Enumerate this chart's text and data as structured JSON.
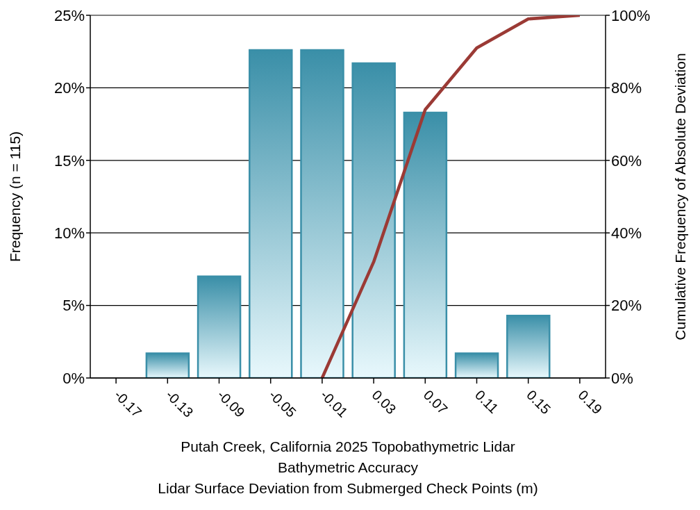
{
  "chart_data": {
    "type": "bar",
    "categories": [
      "-0.17",
      "-0.13",
      "-0.09",
      "-0.05",
      "-0.01",
      "0.03",
      "0.07",
      "0.11",
      "0.15",
      "0.19"
    ],
    "series": [
      {
        "color": "#3a8fa8",
        "values": [
          0,
          1.7,
          7.0,
          22.6,
          22.6,
          21.7,
          18.3,
          1.7,
          4.3,
          0
        ]
      },
      {
        "type": "line",
        "axis": "y2",
        "color": "#9b3a35",
        "values": [
          null,
          null,
          null,
          null,
          0,
          32,
          74,
          91,
          99,
          100
        ]
      }
    ],
    "ylabel": "Frequency (n = 115)",
    "y2label": "Cumulative Frequency of Absolute Deviation",
    "xlabel": "Putah Creek, California 2025 Topobathymetric Lidar\nBathymetric Accuracy\nLidar Surface Deviation from Submerged Check Points (m)",
    "ylim": [
      0,
      25
    ],
    "yticks": [
      {
        "value": 0,
        "label": "0%"
      },
      {
        "value": 5,
        "label": "5%"
      },
      {
        "value": 10,
        "label": "10%"
      },
      {
        "value": 15,
        "label": "15%"
      },
      {
        "value": 20,
        "label": "20%"
      },
      {
        "value": 25,
        "label": "25%"
      }
    ],
    "y2lim": [
      0,
      100
    ],
    "y2ticks": [
      {
        "value": 0,
        "label": "0%"
      },
      {
        "value": 20,
        "label": "20%"
      },
      {
        "value": 40,
        "label": "40%"
      },
      {
        "value": 60,
        "label": "60%"
      },
      {
        "value": 80,
        "label": "80%"
      },
      {
        "value": 100,
        "label": "100%"
      }
    ],
    "grid": "y",
    "legend": false,
    "marker": "none",
    "line_style": "solid"
  }
}
